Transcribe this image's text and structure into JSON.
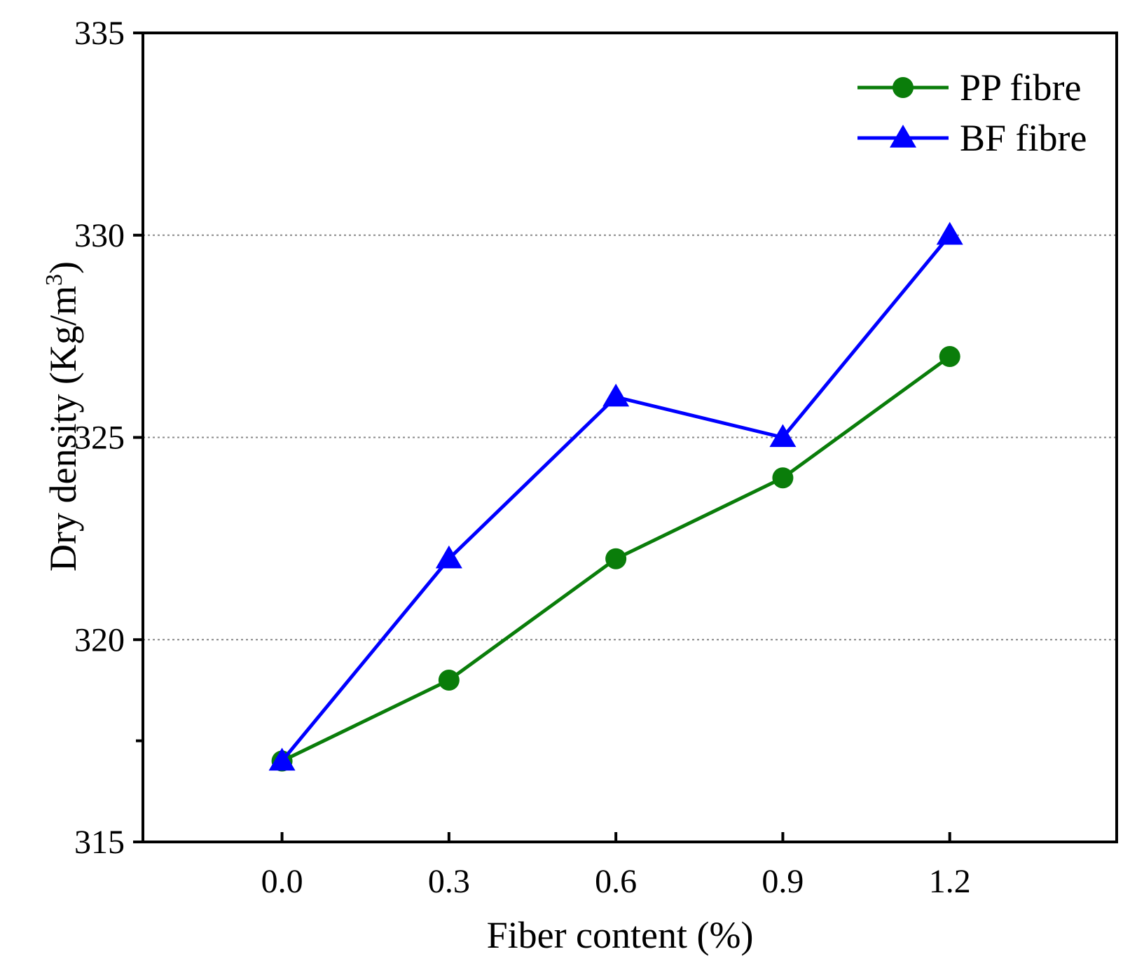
{
  "chart_data": {
    "type": "line",
    "x": [
      0.0,
      0.3,
      0.6,
      0.9,
      1.2
    ],
    "x_tick_labels": [
      "0.0",
      "0.3",
      "0.6",
      "0.9",
      "1.2"
    ],
    "y_tick_labels": [
      "315",
      "320",
      "325",
      "330",
      "335"
    ],
    "y_ticks": [
      315,
      320,
      325,
      330,
      335
    ],
    "xlim": [
      -0.25,
      1.5
    ],
    "ylim": [
      315,
      335
    ],
    "xlabel": "Fiber content (%)",
    "ylabel": "Dry density (Kg/m",
    "ylabel_superscript": "3",
    "ylabel_close": ")",
    "grid": "horizontal dotted at 320, 325, 330",
    "legend_position": "top-right",
    "series": [
      {
        "name": "PP fibre",
        "marker": "circle",
        "color": "#0a7d0a",
        "values": [
          317,
          319,
          322,
          324,
          327
        ]
      },
      {
        "name": "BF fibre",
        "marker": "triangle",
        "color": "#0000ff",
        "values": [
          317,
          322,
          326,
          325,
          330
        ]
      }
    ]
  }
}
